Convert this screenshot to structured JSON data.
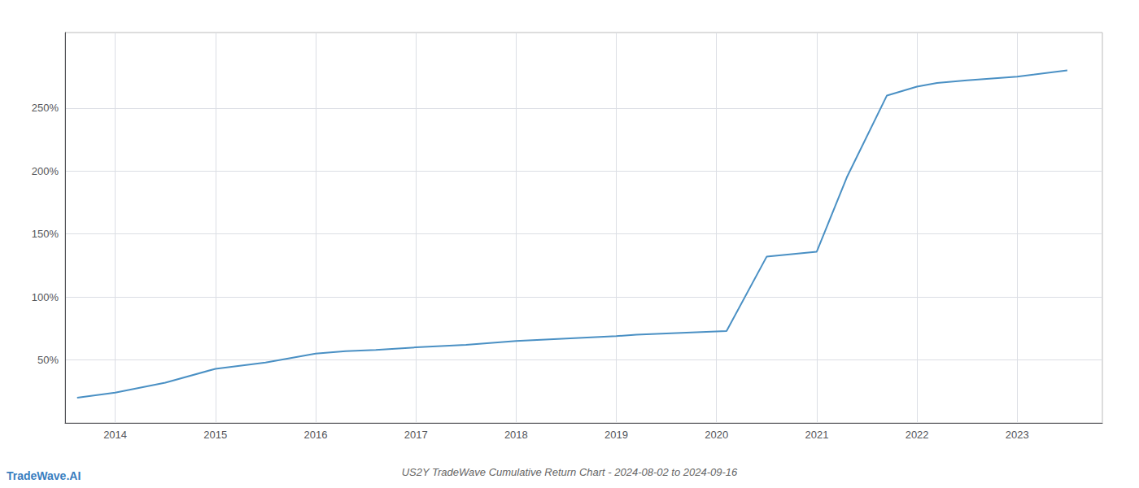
{
  "chart_data": {
    "type": "line",
    "title": "US2Y TradeWave Cumulative Return Chart - 2024-08-02 to 2024-09-16",
    "x": [
      2013.62,
      2014.0,
      2014.5,
      2015.0,
      2015.5,
      2016.0,
      2016.3,
      2016.6,
      2017.0,
      2017.5,
      2018.0,
      2018.5,
      2019.0,
      2019.2,
      2019.5,
      2019.8,
      2020.1,
      2020.5,
      2021.0,
      2021.3,
      2021.7,
      2022.0,
      2022.2,
      2022.5,
      2023.0,
      2023.5
    ],
    "values": [
      20,
      24,
      32,
      43,
      48,
      55,
      57,
      58,
      60,
      62,
      65,
      67,
      69,
      70,
      71,
      72,
      73,
      132,
      136,
      195,
      260,
      267,
      270,
      272,
      275,
      280
    ],
    "color": "#4a90c4",
    "xlim": [
      2013.5,
      2023.85
    ],
    "xticks": [
      2014,
      2015,
      2016,
      2017,
      2018,
      2019,
      2020,
      2021,
      2022,
      2023
    ],
    "ylim": [
      0,
      310
    ],
    "yticks": [
      {
        "value": 50,
        "label": "50%"
      },
      {
        "value": 100,
        "label": "100%"
      },
      {
        "value": 150,
        "label": "150%"
      },
      {
        "value": 200,
        "label": "200%"
      },
      {
        "value": 250,
        "label": "250%"
      }
    ],
    "grid": true,
    "annotations": [
      {
        "text": "TradeWave.AI",
        "color": "#3a7ebf"
      }
    ]
  }
}
